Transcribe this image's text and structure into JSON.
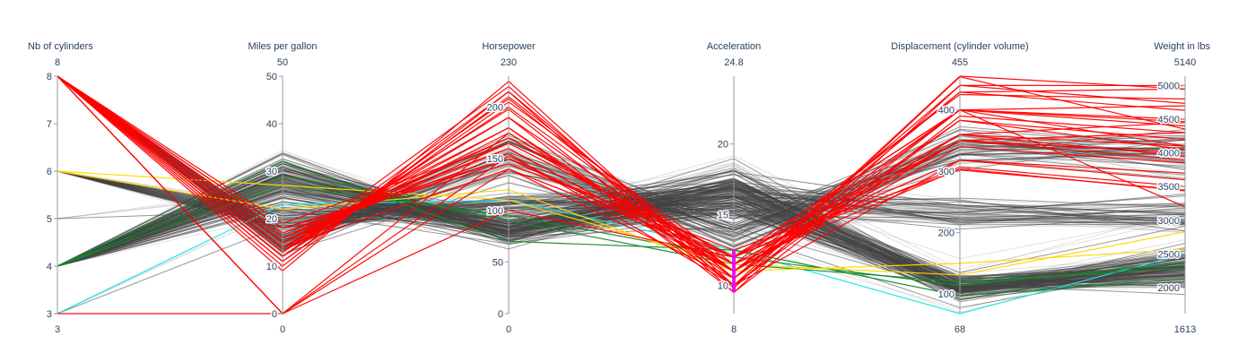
{
  "chart_data": {
    "type": "parallel_coordinates",
    "colors": {
      "highlight_red": "#ff0000",
      "highlight_gold": "#ffd700",
      "highlight_green": "#128a2a",
      "highlight_cyan": "#18e6e6",
      "context_gray": "#444444",
      "brush": "#ee00ee",
      "axis": "#9a9a9a",
      "text": "#2a3f5f"
    },
    "axes": [
      {
        "key": "cyl",
        "title": "Nb of cylinders",
        "range": [
          3,
          8
        ],
        "range_labels": [
          "3",
          "8"
        ],
        "ticks": [
          "3",
          "4",
          "5",
          "6",
          "7",
          "8"
        ]
      },
      {
        "key": "mpg",
        "title": "Miles per gallon",
        "range": [
          0,
          50
        ],
        "range_labels": [
          "0",
          "50"
        ],
        "ticks": [
          "0",
          "10",
          "20",
          "30",
          "40",
          "50"
        ]
      },
      {
        "key": "hp",
        "title": "Horsepower",
        "range": [
          0,
          230
        ],
        "range_labels": [
          "0",
          "230"
        ],
        "ticks": [
          "0",
          "50",
          "100",
          "150",
          "200"
        ]
      },
      {
        "key": "acc",
        "title": "Acceleration",
        "range": [
          8,
          24.8
        ],
        "range_labels": [
          "8",
          "24.8"
        ],
        "ticks": [
          "10",
          "15",
          "20"
        ]
      },
      {
        "key": "disp",
        "title": "Displacement (cylinder volume)",
        "range": [
          68,
          455
        ],
        "range_labels": [
          "68",
          "455"
        ],
        "ticks": [
          "100",
          "200",
          "300",
          "400"
        ]
      },
      {
        "key": "wt",
        "title": "Weight in lbs",
        "range": [
          1613,
          5140
        ],
        "range_labels": [
          "1613",
          "5140"
        ],
        "ticks": [
          "2000",
          "2500",
          "3000",
          "3500",
          "4000",
          "4500",
          "5000"
        ]
      }
    ],
    "brush": {
      "axis": "acc",
      "range": [
        9.5,
        12.5
      ]
    },
    "highlighted_lines": [
      {
        "group": "red",
        "values": [
          8,
          9,
          225,
          10,
          455,
          4950
        ]
      },
      {
        "group": "red",
        "values": [
          8,
          10,
          215,
          10.5,
          440,
          4735
        ]
      },
      {
        "group": "red",
        "values": [
          8,
          11,
          210,
          11,
          429,
          4950
        ]
      },
      {
        "group": "red",
        "values": [
          8,
          12,
          200,
          11,
          400,
          4500
        ]
      },
      {
        "group": "red",
        "values": [
          8,
          13,
          198,
          10,
          400,
          4400
        ]
      },
      {
        "group": "red",
        "values": [
          8,
          13,
          190,
          9.5,
          390,
          4300
        ]
      },
      {
        "group": "red",
        "values": [
          8,
          14,
          180,
          10,
          383,
          4200
        ]
      },
      {
        "group": "red",
        "values": [
          8,
          14,
          175,
          11,
          360,
          4100
        ]
      },
      {
        "group": "red",
        "values": [
          8,
          15,
          170,
          11.5,
          350,
          4000
        ]
      },
      {
        "group": "red",
        "values": [
          8,
          15,
          165,
          12,
          350,
          3900
        ]
      },
      {
        "group": "red",
        "values": [
          8,
          16,
          160,
          11,
          340,
          3850
        ]
      },
      {
        "group": "red",
        "values": [
          8,
          16,
          155,
          10,
          318,
          3700
        ]
      },
      {
        "group": "red",
        "values": [
          8,
          17,
          150,
          12,
          307,
          3500
        ]
      },
      {
        "group": "red",
        "values": [
          8,
          18,
          150,
          11.5,
          304,
          3436
        ]
      },
      {
        "group": "red",
        "values": [
          8,
          18,
          145,
          12.5,
          302,
          3449
        ]
      },
      {
        "group": "red",
        "values": [
          8,
          14,
          140,
          12,
          318,
          3600
        ]
      },
      {
        "group": "red",
        "values": [
          8,
          12,
          208,
          10.5,
          429,
          4633
        ]
      },
      {
        "group": "red",
        "values": [
          8,
          13,
          220,
          9.8,
          454,
          4354
        ]
      },
      {
        "group": "red",
        "values": [
          8,
          11,
          205,
          11.5,
          425,
          4800
        ]
      },
      {
        "group": "red",
        "values": [
          8,
          16,
          170,
          12,
          400,
          4464
        ]
      },
      {
        "group": "red",
        "values": [
          8,
          17,
          160,
          11,
          350,
          4000
        ]
      },
      {
        "group": "red",
        "values": [
          8,
          19,
          165,
          12,
          360,
          3950
        ]
      },
      {
        "group": "red",
        "values": [
          8,
          15,
          180,
          10.5,
          400,
          4100
        ]
      },
      {
        "group": "red",
        "values": [
          8,
          14,
          190,
          11,
          400,
          4700
        ]
      },
      {
        "group": "red",
        "values": [
          8,
          12,
          215,
          9.5,
          440,
          5000
        ]
      },
      {
        "group": "red",
        "values": [
          8,
          0,
          175,
          11,
          350,
          4300
        ]
      },
      {
        "group": "red",
        "values": [
          8,
          0,
          153,
          11,
          360,
          4450
        ]
      },
      {
        "group": "red",
        "values": [
          3,
          0,
          100,
          12,
          400,
          3200
        ]
      },
      {
        "group": "red",
        "values": [
          8,
          0,
          140,
          10.5,
          383,
          4050
        ]
      },
      {
        "group": "gold",
        "values": [
          6,
          27,
          110,
          11.5,
          131,
          2830
        ]
      },
      {
        "group": "gold",
        "values": [
          6,
          22,
          120,
          11,
          150,
          2570
        ]
      },
      {
        "group": "green",
        "values": [
          4,
          32,
          70,
          12.5,
          97,
          2130
        ]
      },
      {
        "group": "green",
        "values": [
          4,
          29,
          90,
          11.5,
          120,
          2290
        ]
      },
      {
        "group": "green",
        "values": [
          4,
          27,
          95,
          12,
          114,
          2370
        ]
      },
      {
        "group": "cyan",
        "values": [
          3,
          23,
          110,
          12.5,
          68,
          2500
        ]
      }
    ]
  }
}
